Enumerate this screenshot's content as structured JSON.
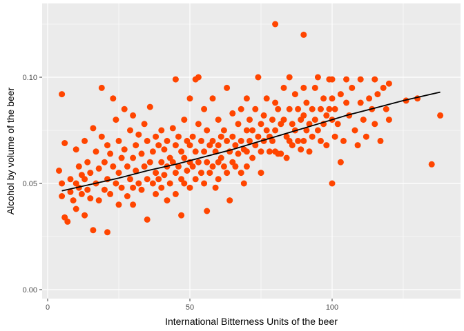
{
  "chart_data": {
    "type": "scatter",
    "title": "",
    "xlabel": "International Bitterness Units of the beer",
    "ylabel": "Alcohol by volume of the beer",
    "xlim": [
      0,
      140
    ],
    "ylim": [
      0,
      0.127
    ],
    "x_ticks": [
      0,
      50,
      100
    ],
    "x_tick_labels": [
      "0",
      "50",
      "100"
    ],
    "y_ticks": [
      0.0,
      0.05,
      0.1
    ],
    "y_tick_labels": [
      "0.00",
      "0.05",
      "0.10"
    ],
    "grid": true,
    "legend": "none",
    "colors": {
      "points": "#ff4500",
      "trend_line": "#000000",
      "panel_background": "#ebebeb",
      "grid": "#ffffff"
    },
    "points": [
      [
        4,
        0.056
      ],
      [
        5,
        0.092
      ],
      [
        5,
        0.05
      ],
      [
        5,
        0.044
      ],
      [
        6,
        0.069
      ],
      [
        6,
        0.034
      ],
      [
        7,
        0.032
      ],
      [
        8,
        0.052
      ],
      [
        8,
        0.046
      ],
      [
        9,
        0.042
      ],
      [
        10,
        0.066
      ],
      [
        10,
        0.05
      ],
      [
        10,
        0.038
      ],
      [
        11,
        0.058
      ],
      [
        11,
        0.048
      ],
      [
        12,
        0.054
      ],
      [
        12,
        0.045
      ],
      [
        13,
        0.07
      ],
      [
        13,
        0.052
      ],
      [
        13,
        0.035
      ],
      [
        14,
        0.06
      ],
      [
        14,
        0.047
      ],
      [
        15,
        0.055
      ],
      [
        15,
        0.043
      ],
      [
        16,
        0.076
      ],
      [
        16,
        0.028
      ],
      [
        17,
        0.065
      ],
      [
        17,
        0.05
      ],
      [
        18,
        0.057
      ],
      [
        18,
        0.042
      ],
      [
        19,
        0.095
      ],
      [
        19,
        0.072
      ],
      [
        20,
        0.06
      ],
      [
        20,
        0.047
      ],
      [
        21,
        0.068
      ],
      [
        21,
        0.052
      ],
      [
        21,
        0.027
      ],
      [
        22,
        0.064
      ],
      [
        22,
        0.045
      ],
      [
        23,
        0.09
      ],
      [
        23,
        0.058
      ],
      [
        24,
        0.08
      ],
      [
        24,
        0.05
      ],
      [
        25,
        0.07
      ],
      [
        25,
        0.055
      ],
      [
        25,
        0.04
      ],
      [
        26,
        0.062
      ],
      [
        26,
        0.048
      ],
      [
        27,
        0.085
      ],
      [
        27,
        0.066
      ],
      [
        28,
        0.058
      ],
      [
        28,
        0.044
      ],
      [
        29,
        0.075
      ],
      [
        29,
        0.052
      ],
      [
        30,
        0.082
      ],
      [
        30,
        0.062
      ],
      [
        30,
        0.048
      ],
      [
        30,
        0.04
      ],
      [
        31,
        0.068
      ],
      [
        31,
        0.056
      ],
      [
        32,
        0.073
      ],
      [
        32,
        0.05
      ],
      [
        33,
        0.064
      ],
      [
        33,
        0.047
      ],
      [
        34,
        0.078
      ],
      [
        34,
        0.058
      ],
      [
        35,
        0.07
      ],
      [
        35,
        0.052
      ],
      [
        35,
        0.033
      ],
      [
        36,
        0.086
      ],
      [
        36,
        0.06
      ],
      [
        37,
        0.065
      ],
      [
        37,
        0.05
      ],
      [
        38,
        0.072
      ],
      [
        38,
        0.055
      ],
      [
        38,
        0.045
      ],
      [
        39,
        0.068
      ],
      [
        39,
        0.052
      ],
      [
        40,
        0.075
      ],
      [
        40,
        0.06
      ],
      [
        40,
        0.048
      ],
      [
        41,
        0.066
      ],
      [
        41,
        0.054
      ],
      [
        42,
        0.07
      ],
      [
        42,
        0.058
      ],
      [
        42,
        0.042
      ],
      [
        43,
        0.062
      ],
      [
        43,
        0.05
      ],
      [
        44,
        0.076
      ],
      [
        44,
        0.06
      ],
      [
        45,
        0.099
      ],
      [
        45,
        0.068
      ],
      [
        45,
        0.055
      ],
      [
        45,
        0.045
      ],
      [
        46,
        0.072
      ],
      [
        46,
        0.058
      ],
      [
        47,
        0.065
      ],
      [
        47,
        0.052
      ],
      [
        47,
        0.035
      ],
      [
        48,
        0.08
      ],
      [
        48,
        0.062
      ],
      [
        48,
        0.05
      ],
      [
        49,
        0.07
      ],
      [
        49,
        0.056
      ],
      [
        50,
        0.09
      ],
      [
        50,
        0.068
      ],
      [
        50,
        0.06
      ],
      [
        50,
        0.048
      ],
      [
        51,
        0.072
      ],
      [
        51,
        0.058
      ],
      [
        52,
        0.099
      ],
      [
        52,
        0.065
      ],
      [
        52,
        0.052
      ],
      [
        53,
        0.1
      ],
      [
        53,
        0.078
      ],
      [
        53,
        0.06
      ],
      [
        54,
        0.07
      ],
      [
        54,
        0.055
      ],
      [
        55,
        0.085
      ],
      [
        55,
        0.065
      ],
      [
        55,
        0.05
      ],
      [
        56,
        0.075
      ],
      [
        56,
        0.06
      ],
      [
        56,
        0.037
      ],
      [
        57,
        0.068
      ],
      [
        57,
        0.055
      ],
      [
        58,
        0.09
      ],
      [
        58,
        0.07
      ],
      [
        58,
        0.058
      ],
      [
        59,
        0.065
      ],
      [
        59,
        0.048
      ],
      [
        60,
        0.08
      ],
      [
        60,
        0.068
      ],
      [
        60,
        0.06
      ],
      [
        60,
        0.052
      ],
      [
        61,
        0.072
      ],
      [
        61,
        0.062
      ],
      [
        62,
        0.075
      ],
      [
        62,
        0.058
      ],
      [
        63,
        0.095
      ],
      [
        63,
        0.07
      ],
      [
        63,
        0.055
      ],
      [
        64,
        0.065
      ],
      [
        64,
        0.042
      ],
      [
        65,
        0.083
      ],
      [
        65,
        0.072
      ],
      [
        65,
        0.06
      ],
      [
        66,
        0.068
      ],
      [
        66,
        0.058
      ],
      [
        67,
        0.078
      ],
      [
        67,
        0.064
      ],
      [
        68,
        0.085
      ],
      [
        68,
        0.07
      ],
      [
        68,
        0.055
      ],
      [
        69,
        0.066
      ],
      [
        69,
        0.05
      ],
      [
        70,
        0.09
      ],
      [
        70,
        0.075
      ],
      [
        70,
        0.065
      ],
      [
        70,
        0.058
      ],
      [
        71,
        0.08
      ],
      [
        71,
        0.07
      ],
      [
        72,
        0.075
      ],
      [
        72,
        0.062
      ],
      [
        73,
        0.085
      ],
      [
        73,
        0.068
      ],
      [
        74,
        0.1
      ],
      [
        74,
        0.072
      ],
      [
        75,
        0.078
      ],
      [
        75,
        0.065
      ],
      [
        75,
        0.055
      ],
      [
        76,
        0.082
      ],
      [
        76,
        0.07
      ],
      [
        77,
        0.09
      ],
      [
        77,
        0.075
      ],
      [
        78,
        0.072
      ],
      [
        78,
        0.065
      ],
      [
        79,
        0.08
      ],
      [
        79,
        0.07
      ],
      [
        80,
        0.125
      ],
      [
        80,
        0.088
      ],
      [
        80,
        0.075
      ],
      [
        80,
        0.065
      ],
      [
        81,
        0.085
      ],
      [
        81,
        0.064
      ],
      [
        82,
        0.078
      ],
      [
        82,
        0.064
      ],
      [
        83,
        0.095
      ],
      [
        83,
        0.08
      ],
      [
        84,
        0.072
      ],
      [
        84,
        0.062
      ],
      [
        85,
        0.1
      ],
      [
        85,
        0.085
      ],
      [
        85,
        0.07
      ],
      [
        86,
        0.078
      ],
      [
        86,
        0.068
      ],
      [
        87,
        0.092
      ],
      [
        87,
        0.075
      ],
      [
        88,
        0.085
      ],
      [
        88,
        0.07
      ],
      [
        89,
        0.08
      ],
      [
        89,
        0.066
      ],
      [
        90,
        0.12
      ],
      [
        90,
        0.095
      ],
      [
        90,
        0.082
      ],
      [
        90,
        0.07
      ],
      [
        91,
        0.088
      ],
      [
        91,
        0.075
      ],
      [
        92,
        0.078
      ],
      [
        92,
        0.065
      ],
      [
        93,
        0.085
      ],
      [
        93,
        0.072
      ],
      [
        94,
        0.095
      ],
      [
        94,
        0.08
      ],
      [
        95,
        0.1
      ],
      [
        95,
        0.075
      ],
      [
        96,
        0.085
      ],
      [
        96,
        0.07
      ],
      [
        97,
        0.09
      ],
      [
        97,
        0.078
      ],
      [
        98,
        0.082
      ],
      [
        98,
        0.068
      ],
      [
        99,
        0.099
      ],
      [
        99,
        0.085
      ],
      [
        100,
        0.099
      ],
      [
        100,
        0.09
      ],
      [
        100,
        0.08
      ],
      [
        100,
        0.05
      ],
      [
        101,
        0.085
      ],
      [
        101,
        0.072
      ],
      [
        102,
        0.078
      ],
      [
        103,
        0.06
      ],
      [
        103,
        0.092
      ],
      [
        104,
        0.07
      ],
      [
        105,
        0.099
      ],
      [
        105,
        0.088
      ],
      [
        106,
        0.082
      ],
      [
        107,
        0.095
      ],
      [
        108,
        0.075
      ],
      [
        109,
        0.068
      ],
      [
        110,
        0.099
      ],
      [
        110,
        0.088
      ],
      [
        111,
        0.08
      ],
      [
        112,
        0.072
      ],
      [
        113,
        0.09
      ],
      [
        114,
        0.085
      ],
      [
        115,
        0.099
      ],
      [
        115,
        0.078
      ],
      [
        116,
        0.092
      ],
      [
        117,
        0.07
      ],
      [
        118,
        0.095
      ],
      [
        119,
        0.085
      ],
      [
        120,
        0.097
      ],
      [
        120,
        0.08
      ],
      [
        126,
        0.089
      ],
      [
        130,
        0.09
      ],
      [
        135,
        0.059
      ],
      [
        138,
        0.082
      ]
    ],
    "trend_line": [
      [
        5,
        0.0465
      ],
      [
        15,
        0.0495
      ],
      [
        25,
        0.0525
      ],
      [
        35,
        0.056
      ],
      [
        45,
        0.059
      ],
      [
        55,
        0.0625
      ],
      [
        65,
        0.066
      ],
      [
        75,
        0.07
      ],
      [
        85,
        0.074
      ],
      [
        95,
        0.078
      ],
      [
        105,
        0.082
      ],
      [
        115,
        0.0855
      ],
      [
        125,
        0.089
      ],
      [
        138,
        0.093
      ]
    ]
  }
}
